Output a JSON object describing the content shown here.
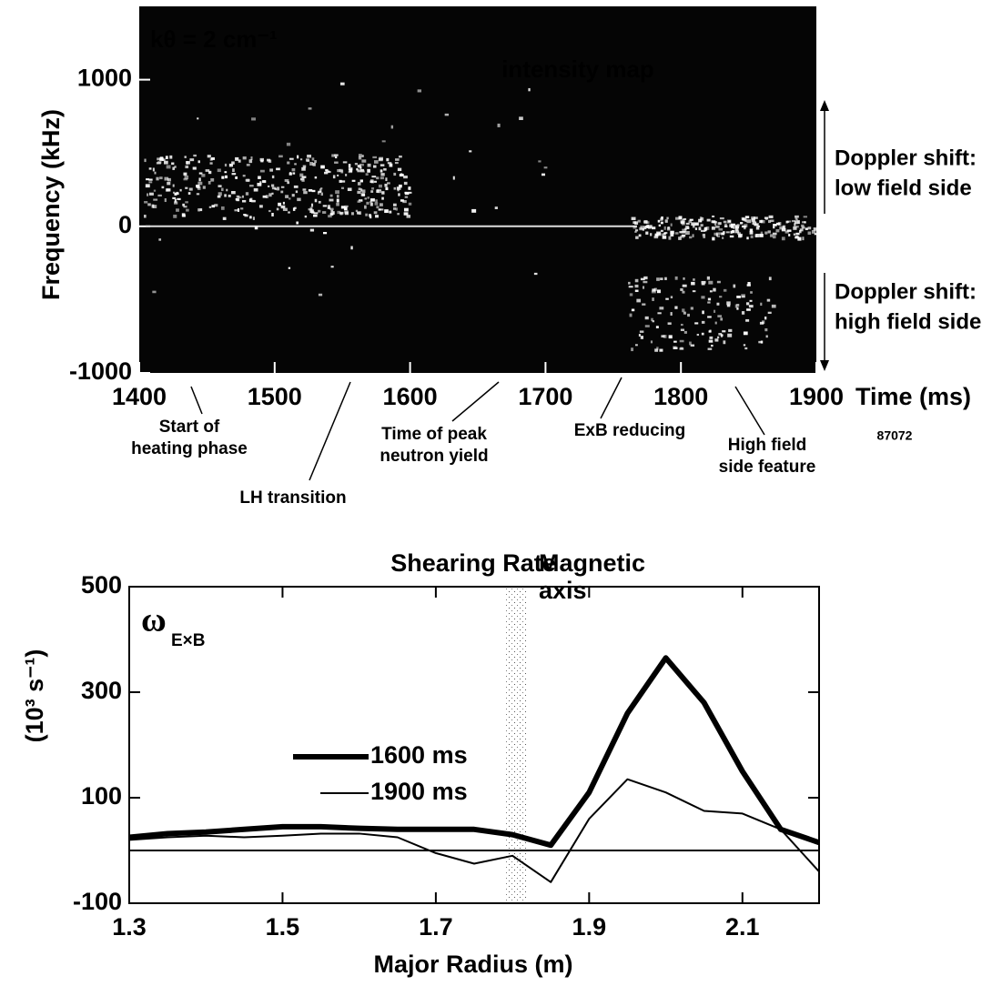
{
  "chart_data": [
    {
      "type": "spectrogram",
      "x_label": "Time (ms)",
      "y_label": "Frequency (kHz)",
      "xlim": [
        1400,
        1900
      ],
      "xticks": [
        1400,
        1500,
        1600,
        1700,
        1800,
        1900
      ],
      "ylim": [
        -1000,
        1500
      ],
      "yticks": [
        -1000,
        0,
        1000
      ],
      "annotations": [
        {
          "name": "wavenumber",
          "lines": [
            "kθ = 2 cm⁻¹"
          ]
        },
        {
          "name": "map-label",
          "lines": [
            "intensity map"
          ]
        },
        {
          "name": "doppler-low",
          "lines": [
            "Doppler shift:",
            "low field side"
          ]
        },
        {
          "name": "doppler-high",
          "lines": [
            "Doppler shift:",
            "high field side"
          ]
        },
        {
          "name": "heating-start",
          "lines": [
            "Start of",
            "heating  phase"
          ]
        },
        {
          "name": "lh-transition",
          "lines": [
            "LH transition"
          ]
        },
        {
          "name": "peak-neutron",
          "lines": [
            "Time of peak",
            "neutron yield"
          ]
        },
        {
          "name": "exb-reducing",
          "lines": [
            "ExB reducing"
          ]
        },
        {
          "name": "hfs-feature",
          "lines": [
            "High field",
            "side feature"
          ]
        },
        {
          "name": "shot-number",
          "lines": [
            "87072"
          ]
        }
      ]
    },
    {
      "type": "line",
      "title": "Shearing Rate",
      "x_label": "Major Radius (m)",
      "y_label": "(10³ s⁻¹)",
      "symbol": "ω",
      "symbol_subscript": "E×B",
      "band_label": [
        "Magnetic",
        "axis"
      ],
      "xlim": [
        1.3,
        2.2
      ],
      "xticks": [
        1.3,
        1.5,
        1.7,
        1.9,
        2.1
      ],
      "ylim": [
        -100,
        500
      ],
      "yticks": [
        -100,
        100,
        300,
        500
      ],
      "x": [
        1.3,
        1.35,
        1.4,
        1.45,
        1.5,
        1.55,
        1.6,
        1.65,
        1.7,
        1.75,
        1.8,
        1.85,
        1.9,
        1.95,
        2.0,
        2.05,
        2.1,
        2.15,
        2.2
      ],
      "series": [
        {
          "name": "1600 ms",
          "color": "#000000",
          "width": 6,
          "values": [
            25,
            32,
            35,
            40,
            45,
            45,
            42,
            40,
            40,
            40,
            30,
            10,
            110,
            260,
            365,
            280,
            150,
            40,
            15
          ]
        },
        {
          "name": "1900 ms",
          "color": "#000000",
          "width": 2,
          "values": [
            20,
            25,
            28,
            25,
            28,
            32,
            32,
            25,
            -5,
            -25,
            -10,
            -60,
            60,
            135,
            110,
            75,
            70,
            40,
            -40
          ]
        }
      ]
    }
  ]
}
